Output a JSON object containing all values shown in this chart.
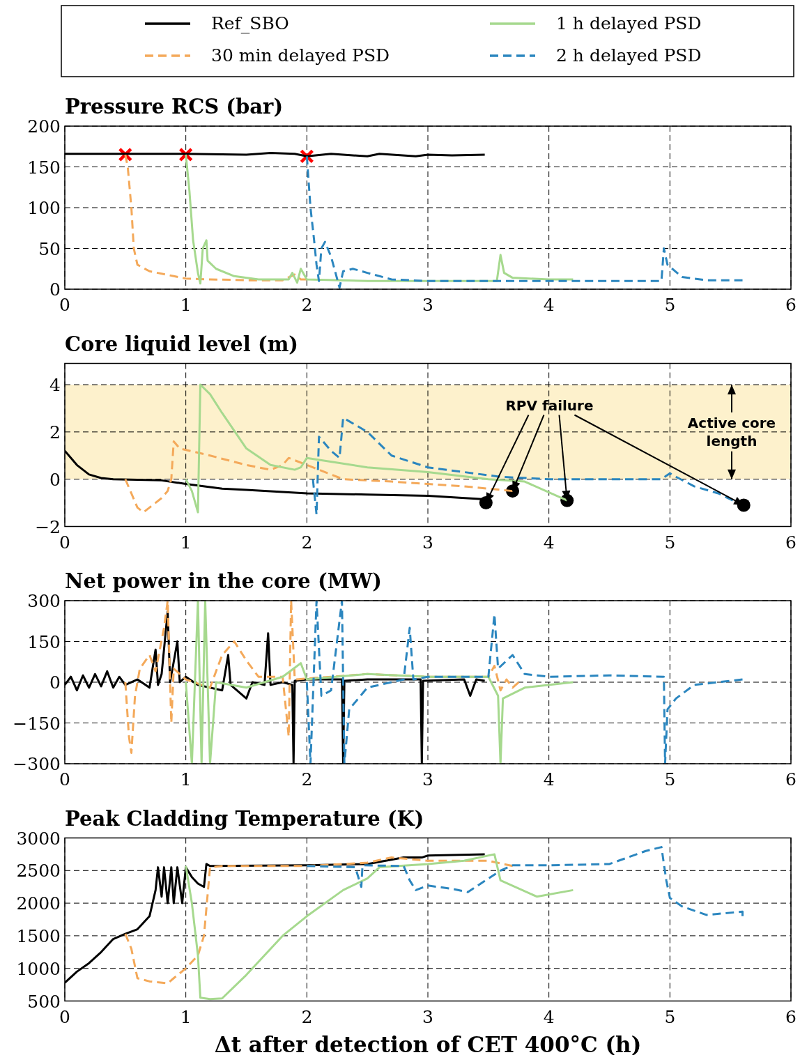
{
  "chart_data": [
    {
      "type": "line",
      "title": "Pressure RCS (bar)",
      "xlim": [
        0,
        6
      ],
      "xticks": [
        0,
        1,
        2,
        3,
        4,
        5,
        6
      ],
      "ylim": [
        0,
        200
      ],
      "yticks": [
        0,
        50,
        100,
        150,
        200
      ],
      "grid": true,
      "legend": "top",
      "series": [
        {
          "name": "Ref_SBO",
          "color": "#000000",
          "line_style": "solid",
          "x": [
            0,
            0.5,
            1,
            1.5,
            1.7,
            1.9,
            2,
            2.2,
            2.5,
            2.6,
            2.9,
            3.0,
            3.2,
            3.47
          ],
          "values": [
            166,
            166,
            166,
            165,
            167,
            166,
            163,
            166,
            163,
            166,
            163,
            165,
            164,
            165
          ]
        },
        {
          "name": "30 min delayed PSD",
          "color": "#f4a95a",
          "line_style": "dashed",
          "x": [
            0.5,
            0.52,
            0.55,
            0.57,
            0.6,
            0.7,
            0.9,
            1.0,
            1.2,
            1.5,
            1.8,
            1.9,
            1.95,
            2.0
          ],
          "values": [
            165,
            150,
            100,
            50,
            30,
            22,
            16,
            13,
            12,
            11,
            11,
            18,
            12,
            12
          ]
        },
        {
          "name": "1 h delayed PSD",
          "color": "#a6d98e",
          "line_style": "solid",
          "x": [
            1,
            1.03,
            1.06,
            1.1,
            1.12,
            1.14,
            1.17,
            1.18,
            1.25,
            1.4,
            1.6,
            1.85,
            1.88,
            1.92,
            1.95,
            2.0,
            2.5,
            3.5,
            3.57,
            3.6,
            3.63,
            3.7,
            4.0,
            4.2
          ],
          "values": [
            165,
            120,
            60,
            20,
            7,
            50,
            60,
            35,
            25,
            16,
            12,
            12,
            20,
            8,
            25,
            12,
            10,
            10,
            10,
            42,
            20,
            14,
            12,
            12
          ]
        },
        {
          "name": "2 h delayed PSD",
          "color": "#2b86bf",
          "line_style": "dashed",
          "x": [
            2,
            2.03,
            2.06,
            2.08,
            2.1,
            2.12,
            2.15,
            2.2,
            2.27,
            2.3,
            2.38,
            2.5,
            2.7,
            3,
            4,
            4.93,
            4.95,
            4.98,
            5.1,
            5.3,
            5.6
          ],
          "values": [
            163,
            100,
            60,
            30,
            10,
            50,
            58,
            40,
            2,
            22,
            25,
            20,
            12,
            10,
            10,
            10,
            50,
            30,
            15,
            11,
            11
          ]
        },
        {
          "type": "scatter",
          "marker": "cross",
          "color": "#ff0000",
          "x": [
            0.5,
            1,
            2
          ],
          "values": [
            165,
            165,
            163
          ]
        }
      ]
    },
    {
      "type": "line",
      "title": "Core liquid level (m)",
      "xlim": [
        0,
        6
      ],
      "xticks": [
        0,
        1,
        2,
        3,
        4,
        5,
        6
      ],
      "ylim": [
        -2,
        4.9
      ],
      "yticks": [
        {
          "value": -2,
          "label": "−2"
        },
        0,
        2,
        4
      ],
      "grid": true,
      "bands": [
        {
          "axis": "y",
          "from": 0,
          "to": 4,
          "color": "#fdf1cc"
        }
      ],
      "annotations": [
        {
          "text": "RPV failure",
          "x": 3.48,
          "y": -1.0
        },
        "Active core length"
      ],
      "series": [
        {
          "color": "#000000",
          "line_style": "solid",
          "x": [
            0,
            0.1,
            0.2,
            0.3,
            0.4,
            0.8,
            1,
            1.3,
            1.5,
            2,
            2.5,
            3,
            3.47
          ],
          "values": [
            1.2,
            0.6,
            0.2,
            0.05,
            0,
            -0.05,
            -0.2,
            -0.4,
            -0.45,
            -0.6,
            -0.65,
            -0.7,
            -0.85
          ]
        },
        {
          "color": "#f4a95a",
          "line_style": "dashed",
          "x": [
            0.5,
            0.55,
            0.6,
            0.65,
            0.7,
            0.8,
            0.85,
            0.88,
            0.9,
            0.95,
            1.2,
            1.5,
            1.7,
            1.8,
            1.85,
            1.9,
            2.0,
            2.3,
            2.7,
            3.0,
            3.3,
            3.5,
            3.7
          ],
          "values": [
            0,
            -0.6,
            -1.2,
            -1.4,
            -1.2,
            -0.8,
            -0.5,
            0,
            1.6,
            1.3,
            1.0,
            0.6,
            0.4,
            0.6,
            0.9,
            0.8,
            0.6,
            0.0,
            -0.1,
            -0.2,
            -0.3,
            -0.4,
            -0.5
          ]
        },
        {
          "color": "#a6d98e",
          "line_style": "solid",
          "x": [
            1,
            1.05,
            1.1,
            1.12,
            1.2,
            1.3,
            1.5,
            1.7,
            1.9,
            1.95,
            2.0,
            2.5,
            3,
            3.5,
            3.8,
            4.15
          ],
          "values": [
            0,
            -0.5,
            -1.4,
            4.0,
            3.6,
            2.8,
            1.3,
            0.6,
            0.4,
            0.5,
            0.9,
            0.5,
            0.3,
            0,
            -0.1,
            -0.9
          ]
        },
        {
          "color": "#2b86bf",
          "line_style": "dashed",
          "x": [
            2.05,
            2.08,
            2.1,
            2.2,
            2.27,
            2.3,
            2.5,
            2.7,
            3.0,
            3.3,
            3.6,
            4.0,
            4.5,
            4.93,
            5.0,
            5.05,
            5.2,
            5.4,
            5.52
          ],
          "values": [
            0,
            -1.5,
            1.8,
            1.2,
            0.9,
            2.6,
            2.0,
            1.0,
            0.5,
            0.3,
            0.1,
            0.0,
            0,
            0,
            0.25,
            0.1,
            -0.3,
            -0.6,
            -0.9
          ]
        },
        {
          "type": "scatter",
          "marker": "circle",
          "color": "#000000",
          "x": [
            3.48,
            3.7,
            4.15,
            5.61
          ],
          "values": [
            -1.0,
            -0.5,
            -0.9,
            -1.1
          ]
        }
      ]
    },
    {
      "type": "line",
      "title": "Net power in the core (MW)",
      "xlim": [
        0,
        6
      ],
      "xticks": [
        0,
        1,
        2,
        3,
        4,
        5,
        6
      ],
      "ylim": [
        -300,
        300
      ],
      "yticks": [
        {
          "value": -300,
          "label": "−300"
        },
        {
          "value": -150,
          "label": "−150"
        },
        0,
        150,
        300
      ],
      "grid": true,
      "series": [
        {
          "color": "#000000",
          "line_style": "solid",
          "x": [
            0,
            0.05,
            0.1,
            0.15,
            0.2,
            0.25,
            0.3,
            0.35,
            0.4,
            0.45,
            0.5,
            0.6,
            0.7,
            0.75,
            0.77,
            0.8,
            0.85,
            0.87,
            0.93,
            0.95,
            1.0,
            1.1,
            1.3,
            1.35,
            1.37,
            1.5,
            1.55,
            1.65,
            1.68,
            1.7,
            1.8,
            1.88,
            1.89,
            1.9,
            2.0,
            2.29,
            2.3,
            2.31,
            2.5,
            2.94,
            2.95,
            2.96,
            3.3,
            3.35,
            3.4,
            3.47
          ],
          "values": [
            -10,
            20,
            -30,
            25,
            -20,
            30,
            -15,
            40,
            -20,
            20,
            -10,
            10,
            -20,
            120,
            -10,
            30,
            260,
            0,
            150,
            0,
            20,
            -10,
            -30,
            100,
            -10,
            -60,
            0,
            -10,
            180,
            -10,
            0,
            -10,
            -300,
            5,
            10,
            10,
            -300,
            5,
            10,
            10,
            -300,
            5,
            10,
            -50,
            10,
            5
          ]
        },
        {
          "color": "#f4a95a",
          "line_style": "dashed",
          "x": [
            0.5,
            0.53,
            0.55,
            0.58,
            0.62,
            0.7,
            0.75,
            0.82,
            0.85,
            0.88,
            0.9,
            1.0,
            1.2,
            1.3,
            1.4,
            1.5,
            1.6,
            1.8,
            1.85,
            1.87,
            1.9,
            2.5,
            3.0,
            3.5,
            3.55,
            3.6,
            3.65,
            3.7,
            3.75
          ],
          "values": [
            0,
            -200,
            -260,
            -50,
            50,
            100,
            40,
            200,
            300,
            -150,
            50,
            10,
            -20,
            100,
            150,
            80,
            20,
            20,
            -200,
            300,
            10,
            30,
            20,
            20,
            60,
            -30,
            10,
            -20,
            0
          ]
        },
        {
          "color": "#a6d98e",
          "line_style": "solid",
          "x": [
            1.0,
            1.05,
            1.1,
            1.13,
            1.16,
            1.2,
            1.25,
            1.5,
            1.8,
            1.95,
            2.0,
            2.5,
            3.0,
            3.5,
            3.58,
            3.6,
            3.62,
            3.8,
            4.2
          ],
          "values": [
            0,
            -300,
            300,
            -300,
            300,
            -300,
            0,
            -20,
            20,
            70,
            10,
            30,
            20,
            20,
            -50,
            -300,
            -60,
            -20,
            0
          ]
        },
        {
          "color": "#2b86bf",
          "line_style": "dashed",
          "x": [
            2.0,
            2.03,
            2.08,
            2.12,
            2.2,
            2.29,
            2.31,
            2.35,
            2.5,
            2.8,
            2.85,
            2.88,
            3.0,
            3.5,
            3.55,
            3.58,
            3.7,
            3.8,
            4.0,
            4.5,
            4.95,
            4.96,
            4.98,
            5.05,
            5.2,
            5.6
          ],
          "values": [
            0,
            -300,
            300,
            -50,
            -30,
            300,
            -300,
            -100,
            -20,
            10,
            200,
            10,
            20,
            20,
            250,
            50,
            100,
            30,
            20,
            25,
            20,
            -300,
            -100,
            -60,
            -10,
            10
          ]
        }
      ]
    },
    {
      "type": "line",
      "title": "Peak Cladding Temperature (K)",
      "xlabel": "Δt after detection of CET 400°C (h)",
      "xlim": [
        0,
        6
      ],
      "xticks": [
        0,
        1,
        2,
        3,
        4,
        5,
        6
      ],
      "ylim": [
        500,
        3000
      ],
      "yticks": [
        500,
        1000,
        1500,
        2000,
        2500,
        3000
      ],
      "grid": true,
      "series": [
        {
          "color": "#000000",
          "line_style": "solid",
          "x": [
            0,
            0.1,
            0.2,
            0.3,
            0.4,
            0.5,
            0.6,
            0.7,
            0.75,
            0.77,
            0.8,
            0.82,
            0.85,
            0.88,
            0.9,
            0.93,
            0.97,
            1.0,
            1.05,
            1.1,
            1.15,
            1.17,
            1.2,
            2.0,
            2.5,
            2.8,
            2.95,
            3.0,
            3.47
          ],
          "values": [
            780,
            950,
            1080,
            1250,
            1450,
            1530,
            1600,
            1800,
            2200,
            2550,
            2100,
            2550,
            2000,
            2550,
            2000,
            2550,
            2000,
            2550,
            2400,
            2300,
            2250,
            2600,
            2570,
            2580,
            2600,
            2700,
            2700,
            2730,
            2750
          ]
        },
        {
          "color": "#f4a95a",
          "line_style": "dashed",
          "x": [
            0.5,
            0.55,
            0.6,
            0.7,
            0.85,
            0.9,
            1.0,
            1.1,
            1.15,
            1.2,
            1.3,
            2.0,
            2.5,
            2.7,
            3.0,
            3.5,
            3.7
          ],
          "values": [
            1530,
            1300,
            850,
            800,
            770,
            850,
            1000,
            1200,
            1500,
            2550,
            2570,
            2570,
            2620,
            2700,
            2650,
            2650,
            2570
          ]
        },
        {
          "color": "#a6d98e",
          "line_style": "solid",
          "x": [
            1.0,
            1.05,
            1.1,
            1.12,
            1.2,
            1.3,
            1.5,
            1.8,
            2.0,
            2.3,
            2.5,
            2.6,
            3.0,
            3.3,
            3.55,
            3.6,
            3.9,
            4.2
          ],
          "values": [
            2570,
            2000,
            1200,
            550,
            530,
            540,
            900,
            1500,
            1800,
            2200,
            2380,
            2550,
            2600,
            2650,
            2750,
            2350,
            2100,
            2200
          ]
        },
        {
          "color": "#2b86bf",
          "line_style": "dashed",
          "x": [
            2.0,
            2.4,
            2.45,
            2.46,
            2.8,
            2.85,
            2.9,
            3.0,
            3.2,
            3.33,
            3.6,
            3.7,
            4.0,
            4.5,
            4.8,
            4.93,
            4.97,
            5.0,
            5.1,
            5.3,
            5.6,
            5.6
          ],
          "values": [
            2570,
            2550,
            2250,
            2580,
            2570,
            2350,
            2200,
            2270,
            2220,
            2170,
            2500,
            2580,
            2580,
            2600,
            2800,
            2860,
            2350,
            2080,
            1950,
            1820,
            1870,
            1800
          ]
        }
      ]
    }
  ]
}
